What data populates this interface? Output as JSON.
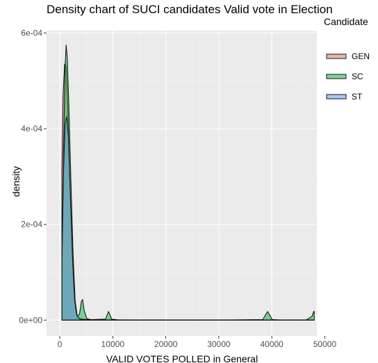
{
  "chart_data": {
    "type": "area",
    "title": "Density chart of SUCI candidates Valid vote in Election",
    "xlabel": "VALID VOTES POLLED in General",
    "ylabel": "density",
    "xlim": [
      -2500,
      48500
    ],
    "ylim": [
      -3.3e-05,
      0.000605
    ],
    "x_ticks": [
      0,
      10000,
      20000,
      30000,
      40000,
      50000
    ],
    "x_tick_labels": [
      "0",
      "10000",
      "20000",
      "30000",
      "40000",
      "50000"
    ],
    "y_ticks": [
      0,
      0.0002,
      0.0004,
      0.0006
    ],
    "y_tick_labels": [
      "0e+00",
      "2e-04",
      "4e-04",
      "6e-04"
    ],
    "grid": true,
    "legend": {
      "title": "Candidate",
      "position": "right",
      "entries": [
        "GEN",
        "SC",
        "ST"
      ]
    },
    "series": [
      {
        "name": "GEN",
        "fill": "#F8766D",
        "points": [
          [
            400,
            0
          ],
          [
            400,
            0.00031
          ],
          [
            600,
            0.000465
          ],
          [
            900,
            0.000535
          ],
          [
            1200,
            0.00053
          ],
          [
            1500,
            0.00045
          ],
          [
            1800,
            0.00033
          ],
          [
            2200,
            0.00018
          ],
          [
            2600,
            7e-05
          ],
          [
            3000,
            2e-05
          ],
          [
            3500,
            4e-06
          ],
          [
            4500,
            1e-06
          ],
          [
            9000,
            5e-07
          ],
          [
            15000,
            3e-07
          ],
          [
            25000,
            2e-07
          ],
          [
            35000,
            2e-07
          ],
          [
            48000,
            2e-07
          ],
          [
            48000,
            0
          ]
        ]
      },
      {
        "name": "SC",
        "fill": "#00BA38",
        "points": [
          [
            400,
            0
          ],
          [
            400,
            0.00012
          ],
          [
            700,
            0.00035
          ],
          [
            1000,
            0.00053
          ],
          [
            1200,
            0.000575
          ],
          [
            1400,
            0.00055
          ],
          [
            1700,
            0.00045
          ],
          [
            2100,
            0.00029
          ],
          [
            2500,
            0.00014
          ],
          [
            2900,
            4e-05
          ],
          [
            3300,
            8e-06
          ],
          [
            3700,
            1.2e-05
          ],
          [
            4100,
            4e-05
          ],
          [
            4300,
            4.3e-05
          ],
          [
            4600,
            2e-05
          ],
          [
            5100,
            3e-06
          ],
          [
            6000,
            1e-06
          ],
          [
            8600,
            2e-06
          ],
          [
            9200,
            1.8e-05
          ],
          [
            9800,
            2e-06
          ],
          [
            11000,
            5e-07
          ],
          [
            20000,
            2e-07
          ],
          [
            30000,
            2e-07
          ],
          [
            38300,
            1e-06
          ],
          [
            39200,
            1.8e-05
          ],
          [
            40100,
            1e-06
          ],
          [
            42000,
            2e-07
          ],
          [
            46500,
            5e-07
          ],
          [
            47600,
            8e-06
          ],
          [
            47900,
            1.8e-05
          ],
          [
            48000,
            1.8e-05
          ],
          [
            48000,
            0
          ]
        ]
      },
      {
        "name": "ST",
        "fill": "#619CFF",
        "points": [
          [
            400,
            0
          ],
          [
            400,
            0.00012
          ],
          [
            700,
            0.00031
          ],
          [
            1000,
            0.00041
          ],
          [
            1300,
            0.000425
          ],
          [
            1600,
            0.000385
          ],
          [
            2000,
            0.00026
          ],
          [
            2400,
            0.00013
          ],
          [
            2800,
            4e-05
          ],
          [
            3200,
            1e-05
          ],
          [
            3800,
            2e-06
          ],
          [
            6000,
            5e-07
          ],
          [
            12000,
            3e-07
          ],
          [
            25000,
            2e-07
          ],
          [
            40000,
            2e-07
          ],
          [
            48000,
            2e-07
          ],
          [
            48000,
            0
          ]
        ]
      }
    ]
  }
}
